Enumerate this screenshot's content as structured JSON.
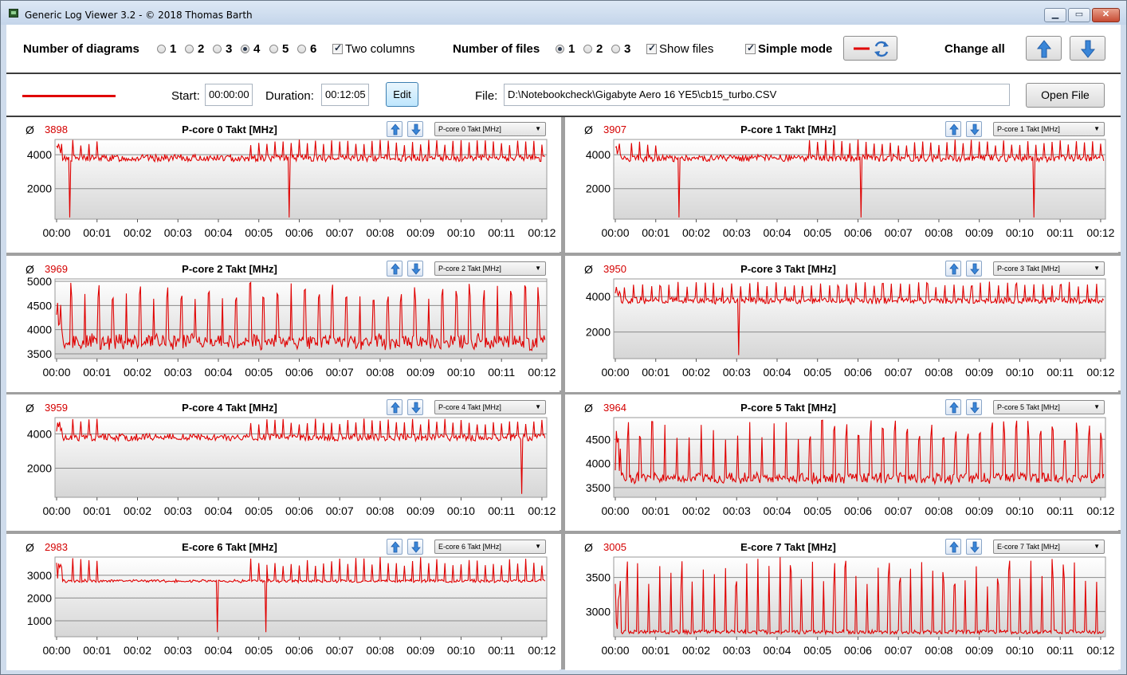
{
  "window": {
    "title": "Generic Log Viewer 3.2 - © 2018 Thomas Barth"
  },
  "toolbar": {
    "num_diagrams_label": "Number of diagrams",
    "diagram_options": [
      "1",
      "2",
      "3",
      "4",
      "5",
      "6"
    ],
    "diagram_selected": "4",
    "two_columns_label": "Two columns",
    "two_columns_checked": true,
    "num_files_label": "Number of files",
    "file_options": [
      "1",
      "2",
      "3"
    ],
    "file_selected": "1",
    "show_files_label": "Show files",
    "show_files_checked": true,
    "simple_mode_label": "Simple mode",
    "simple_mode_checked": true,
    "change_all_label": "Change all"
  },
  "file_bar": {
    "start_label": "Start:",
    "start_value": "00:00:00",
    "duration_label": "Duration:",
    "duration_value": "00:12:05",
    "edit_label": "Edit",
    "file_label": "File:",
    "file_path": "D:\\Notebookcheck\\Gigabyte Aero 16 YE5\\cb15_turbo.CSV",
    "open_label": "Open File",
    "series_color": "#e00000"
  },
  "x_ticks": [
    "00:00",
    "00:01",
    "00:02",
    "00:03",
    "00:04",
    "00:05",
    "00:06",
    "00:07",
    "00:08",
    "00:09",
    "00:10",
    "00:11",
    "00:12"
  ],
  "chart_data": [
    {
      "type": "line",
      "title": "P-core 0 Takt [MHz]",
      "avg": "3898",
      "select": "P-core 0 Takt [MHz]",
      "yticks": [
        2000,
        4000
      ],
      "ylim": [
        200,
        4900
      ],
      "base": 4000,
      "amp": 900,
      "low": 3600,
      "period": 0.2,
      "dips": [
        [
          0.33,
          300
        ],
        [
          5.75,
          300
        ]
      ]
    },
    {
      "type": "line",
      "title": "P-core 1 Takt [MHz]",
      "avg": "3907",
      "select": "P-core 1 Takt [MHz]",
      "yticks": [
        2000,
        4000
      ],
      "ylim": [
        200,
        4900
      ],
      "base": 4000,
      "amp": 900,
      "low": 3600,
      "period": 0.2,
      "dips": [
        [
          1.58,
          300
        ],
        [
          6.08,
          300
        ],
        [
          10.36,
          300
        ]
      ]
    },
    {
      "type": "line",
      "title": "P-core 2 Takt [MHz]",
      "avg": "3969",
      "select": "P-core 2 Takt [MHz]",
      "yticks": [
        3500,
        4000,
        4500,
        5000
      ],
      "ylim": [
        3400,
        5050
      ],
      "base": 3900,
      "amp": 1100,
      "low": 3600,
      "period": 0.34,
      "dips": []
    },
    {
      "type": "line",
      "title": "P-core 3 Takt [MHz]",
      "avg": "3950",
      "select": "P-core 3 Takt [MHz]",
      "yticks": [
        2000,
        4000
      ],
      "ylim": [
        500,
        5000
      ],
      "base": 3950,
      "amp": 900,
      "low": 3600,
      "period": 0.22,
      "dips": [
        [
          3.05,
          700
        ]
      ]
    },
    {
      "type": "line",
      "title": "P-core 4 Takt [MHz]",
      "avg": "3959",
      "select": "P-core 4 Takt [MHz]",
      "yticks": [
        2000,
        4000
      ],
      "ylim": [
        300,
        4950
      ],
      "base": 4000,
      "amp": 900,
      "low": 3600,
      "period": 0.2,
      "dips": [
        [
          11.5,
          500
        ]
      ]
    },
    {
      "type": "line",
      "title": "P-core 5 Takt [MHz]",
      "avg": "3964",
      "select": "P-core 5 Takt [MHz]",
      "yticks": [
        3500,
        4000,
        4500
      ],
      "ylim": [
        3300,
        4950
      ],
      "base": 3800,
      "amp": 1100,
      "low": 3600,
      "period": 0.3,
      "dips": []
    },
    {
      "type": "line",
      "title": "E-core 6 Takt [MHz]",
      "avg": "2983",
      "select": "E-core 6 Takt [MHz]",
      "yticks": [
        1000,
        2000,
        3000
      ],
      "ylim": [
        300,
        3800
      ],
      "base": 2800,
      "amp": 1000,
      "low": 2700,
      "period": 0.2,
      "dips": [
        [
          3.98,
          500
        ],
        [
          5.17,
          500
        ]
      ]
    },
    {
      "type": "line",
      "title": "E-core 7 Takt [MHz]",
      "avg": "3005",
      "select": "E-core 7 Takt [MHz]",
      "yticks": [
        3000,
        3500
      ],
      "ylim": [
        2630,
        3800
      ],
      "base": 2700,
      "amp": 1100,
      "low": 2700,
      "period": 0.27,
      "dips": []
    }
  ]
}
